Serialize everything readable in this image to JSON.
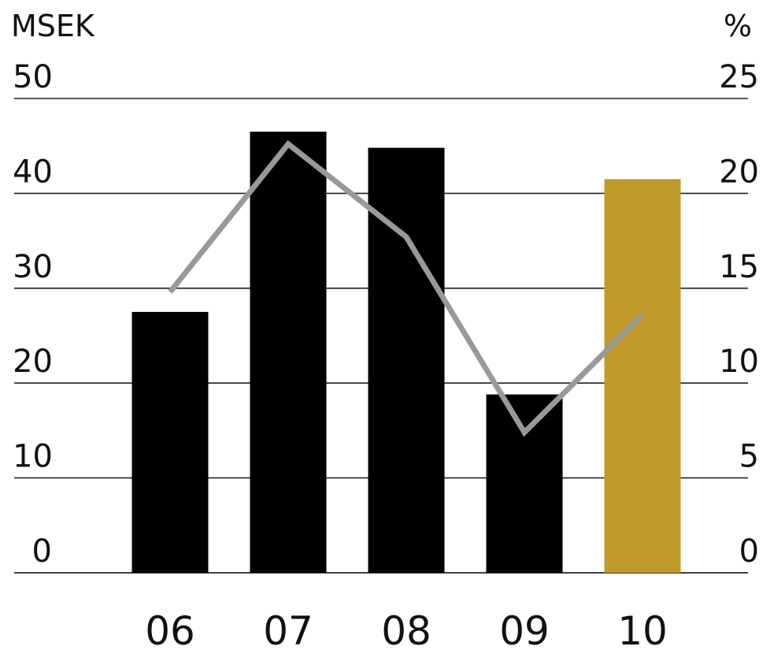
{
  "chart_data": {
    "type": "bar",
    "categories": [
      "06",
      "07",
      "08",
      "09",
      "10"
    ],
    "ylabel_left": "MSEK",
    "ylabel_right": "%",
    "ylim_left": [
      0,
      50
    ],
    "ylim_right": [
      0,
      25
    ],
    "yticks_left": [
      "0",
      "10",
      "20",
      "30",
      "40",
      "50"
    ],
    "yticks_right": [
      "0",
      "5",
      "10",
      "15",
      "20",
      "25"
    ],
    "grid": true,
    "series": [
      {
        "kind": "bar",
        "axis": "left",
        "values": [
          27.5,
          46.5,
          44.8,
          18.8,
          41.5
        ],
        "colors": [
          "#000000",
          "#000000",
          "#000000",
          "#000000",
          "#bf9a2b"
        ]
      },
      {
        "kind": "line",
        "axis": "right",
        "values": [
          14.8,
          22.6,
          17.7,
          7.4,
          13.6
        ],
        "color": "#999999"
      }
    ]
  }
}
